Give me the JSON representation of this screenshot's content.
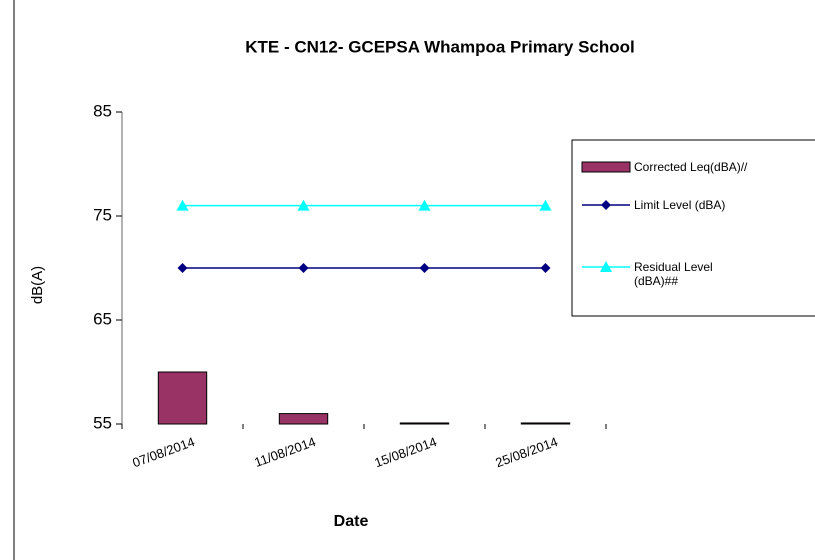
{
  "chart_data": {
    "type": "bar",
    "title": "KTE - CN12- GCEPSA Whampoa Primary School",
    "x_label": "Date",
    "y_label": "dB(A)",
    "categories": [
      "07/08/2014",
      "11/08/2014",
      "15/08/2014",
      "25/08/2014"
    ],
    "series": [
      {
        "name": "Corrected Leq(dBA)//",
        "type": "bar",
        "color": "#993366",
        "values": [
          60,
          56,
          55.1,
          55.1
        ]
      },
      {
        "name": "Limit Level (dBA)",
        "type": "line",
        "marker": "diamond",
        "color": "#000080",
        "values": [
          70,
          70,
          70,
          70
        ]
      },
      {
        "name": "Residual Level (dBA)##",
        "type": "line",
        "marker": "triangle",
        "color": "#00FFFF",
        "values": [
          76,
          76,
          76,
          76
        ]
      }
    ],
    "ylim": [
      55,
      85
    ],
    "yticks": [
      55,
      65,
      75,
      85
    ],
    "grid": false,
    "legend": "right"
  }
}
